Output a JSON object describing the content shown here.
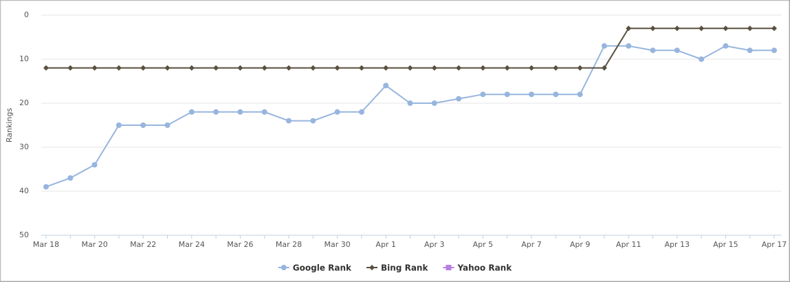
{
  "chart_data": {
    "type": "line",
    "y_label": "Rankings",
    "categories": [
      "Mar 18",
      null,
      "Mar 20",
      null,
      "Mar 22",
      null,
      "Mar 24",
      null,
      "Mar 26",
      null,
      "Mar 28",
      null,
      "Mar 30",
      null,
      "Apr 1",
      null,
      "Apr 3",
      null,
      "Apr 5",
      null,
      "Apr 7",
      null,
      "Apr 9",
      null,
      "Apr 11",
      null,
      "Apr 13",
      null,
      "Apr 15",
      null,
      "Apr 17"
    ],
    "series": [
      {
        "name": "Google Rank",
        "color": "#97b5de",
        "marker": "circle",
        "values": [
          39,
          37,
          34,
          25,
          25,
          25,
          22,
          22,
          22,
          22,
          24,
          24,
          22,
          22,
          16,
          20,
          20,
          19,
          18,
          18,
          18,
          18,
          18,
          7,
          7,
          8,
          8,
          10,
          7,
          8,
          8
        ]
      },
      {
        "name": "Bing Rank",
        "color": "#5a5040",
        "marker": "diamond",
        "values": [
          12,
          12,
          12,
          12,
          12,
          12,
          12,
          12,
          12,
          12,
          12,
          12,
          12,
          12,
          12,
          12,
          12,
          12,
          12,
          12,
          12,
          12,
          12,
          12,
          3,
          3,
          3,
          3,
          3,
          3,
          3
        ]
      },
      {
        "name": "Yahoo Rank",
        "color": "#b77fe0",
        "marker": "square",
        "values": [
          null,
          null,
          null,
          null,
          null,
          null,
          null,
          null,
          null,
          null,
          null,
          null,
          null,
          null,
          null,
          null,
          null,
          null,
          null,
          null,
          null,
          null,
          null,
          null,
          null,
          null,
          null,
          null,
          null,
          null,
          null
        ]
      }
    ],
    "ylim": [
      0,
      50
    ],
    "yticks": [
      0,
      10,
      20,
      30,
      40,
      50
    ],
    "y_inverted": true,
    "grid": true,
    "legend": "bottom"
  }
}
